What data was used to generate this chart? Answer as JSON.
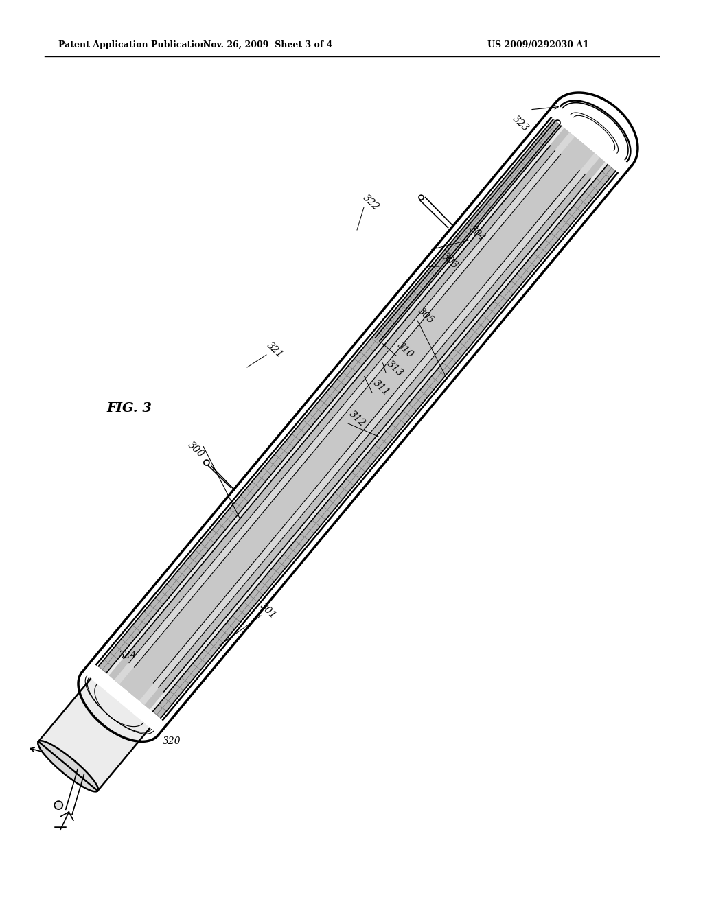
{
  "background_color": "#ffffff",
  "header_left": "Patent Application Publication",
  "header_mid": "Nov. 26, 2009  Sheet 3 of 4",
  "header_right": "US 2009/0292030 A1",
  "fig_label": "FIG. 3",
  "labels": [
    "300",
    "301",
    "303",
    "304",
    "305",
    "310",
    "311",
    "312",
    "313",
    "320",
    "321",
    "322",
    "323",
    "324"
  ]
}
